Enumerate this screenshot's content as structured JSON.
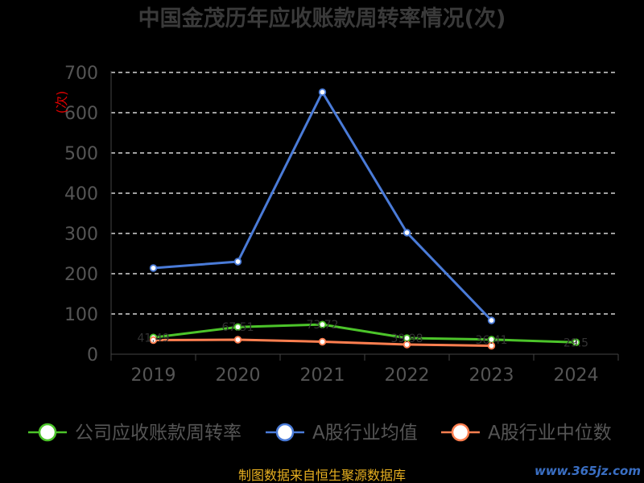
{
  "chart_data": {
    "type": "line",
    "title": "中国金茂历年应收账款周转率情况(次)",
    "ylabel": "(次)",
    "categories": [
      "2019",
      "2020",
      "2021",
      "2022",
      "2023",
      "2024"
    ],
    "yticks": [
      "0",
      "100",
      "200",
      "300",
      "400",
      "500",
      "600",
      "700"
    ],
    "ylim": [
      0,
      700
    ],
    "grid": true,
    "legend_position": "bottom",
    "series": [
      {
        "name": "公司应收账款周转率",
        "color": "#4cc42a",
        "values": [
          41.49,
          67.51,
          73.72,
          39.98,
          36.41,
          29.5
        ],
        "labels": [
          "41.49",
          "67.51",
          "73.72",
          "39.98",
          "36.41",
          "29.5"
        ]
      },
      {
        "name": "A股行业均值",
        "color": "#4a7bd8",
        "values": [
          214,
          230,
          651,
          302,
          84,
          null
        ],
        "labels": []
      },
      {
        "name": "A股行业中位数",
        "color": "#ff7f50",
        "values": [
          35,
          36,
          31,
          24,
          21,
          null
        ],
        "labels": []
      }
    ]
  },
  "footer": {
    "source": "制图数据来自恒生聚源数据库",
    "watermark": "www.365jz.com"
  }
}
